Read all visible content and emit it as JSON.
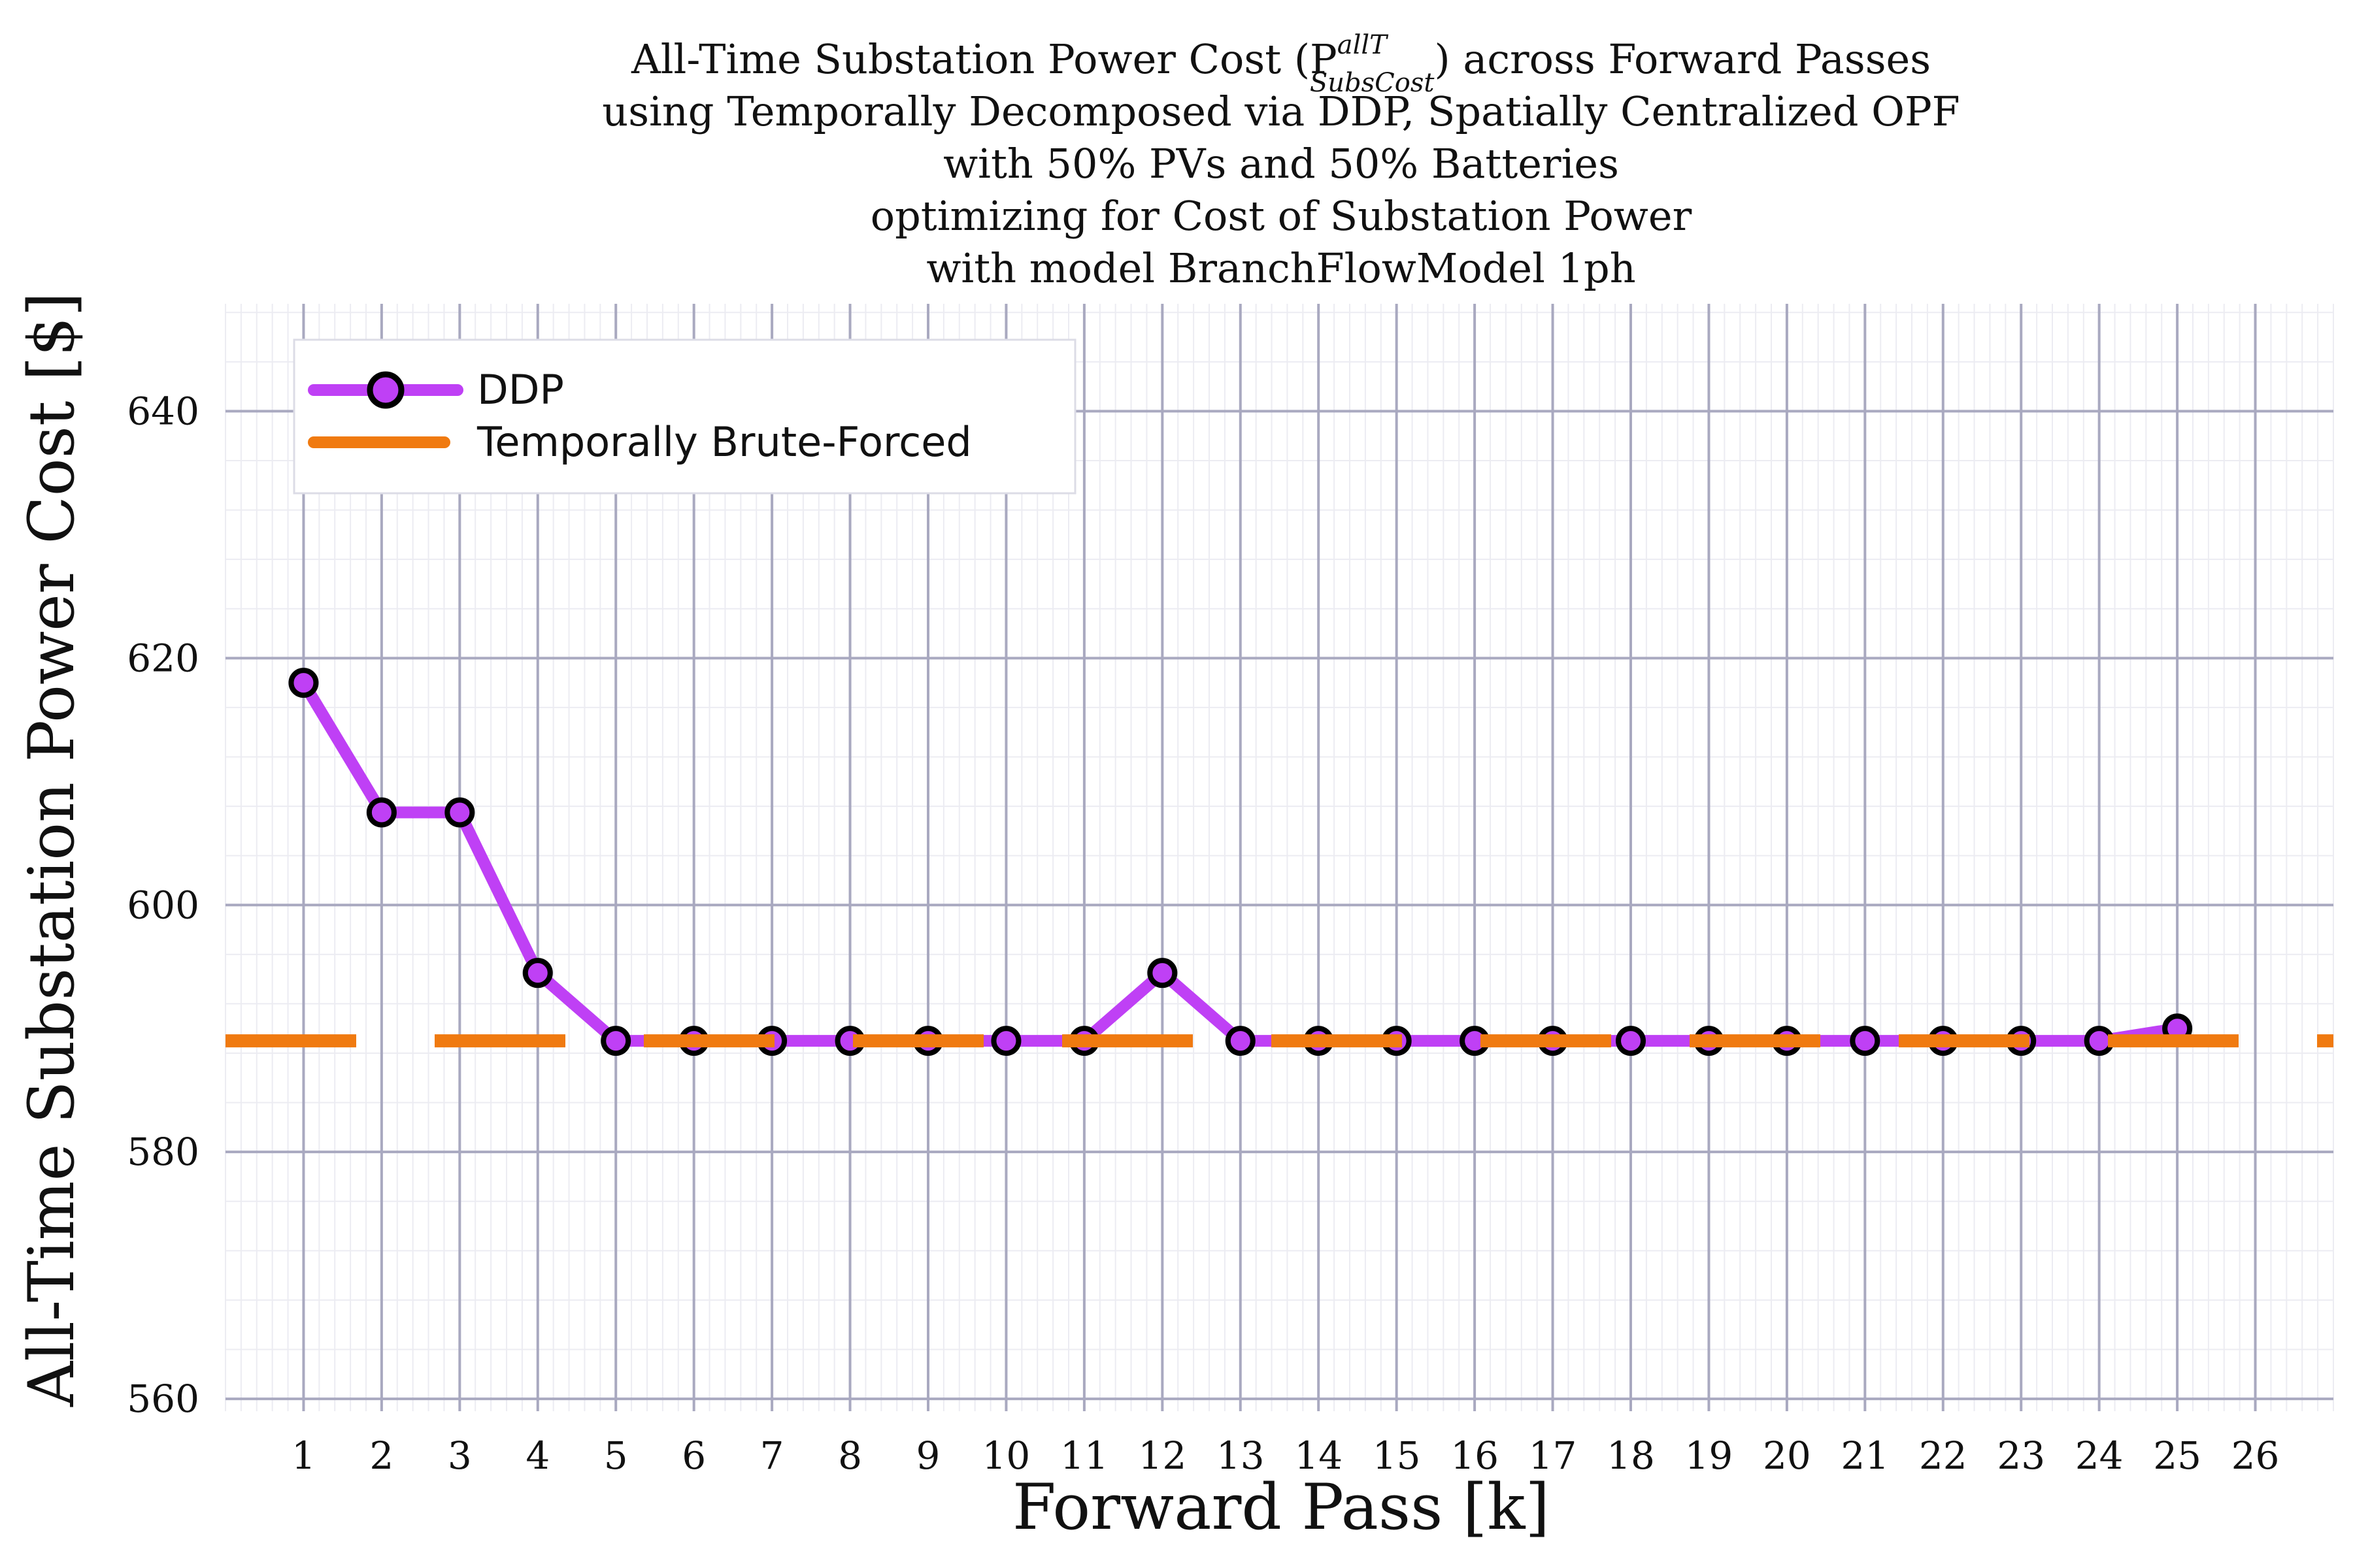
{
  "chart_data": {
    "type": "line",
    "title_lines": [
      "All-Time Substation Power Cost (P",
      "using Temporally Decomposed via DDP, Spatially Centralized OPF",
      "with 50% PVs and 50% Batteries",
      "optimizing for Cost of Substation Power",
      "with model BranchFlowModel 1ph"
    ],
    "title_symbol_sup": "allT",
    "title_symbol_sub": "SubsCost",
    "title_line1_tail": ") across Forward Passes",
    "xlabel": "Forward Pass [k]",
    "ylabel": "All-Time Substation Power Cost [$]",
    "x_ticks": [
      1,
      2,
      3,
      4,
      5,
      6,
      7,
      8,
      9,
      10,
      11,
      12,
      13,
      14,
      15,
      16,
      17,
      18,
      19,
      20,
      21,
      22,
      23,
      24,
      25,
      26
    ],
    "y_ticks": [
      560,
      580,
      600,
      620,
      640
    ],
    "xlim": [
      0.0,
      27.0
    ],
    "ylim": [
      559,
      648.7
    ],
    "grid": true,
    "legend_position": "top-left",
    "series": [
      {
        "name": "DDP",
        "style": "line-with-markers",
        "color": "#bf40f5",
        "x": [
          1,
          2,
          3,
          4,
          5,
          6,
          7,
          8,
          9,
          10,
          11,
          12,
          13,
          14,
          15,
          16,
          17,
          18,
          19,
          20,
          21,
          22,
          23,
          24,
          25
        ],
        "y": [
          618.0,
          607.5,
          607.5,
          594.5,
          589.0,
          589.0,
          589.0,
          589.0,
          589.0,
          589.0,
          589.0,
          594.5,
          589.0,
          589.0,
          589.0,
          589.0,
          589.0,
          589.0,
          589.0,
          589.0,
          589.0,
          589.0,
          589.0,
          589.0,
          590.0
        ]
      },
      {
        "name": "Temporally Brute-Forced",
        "style": "dashed-horizontal",
        "color": "#f07a10",
        "y": 589.0
      }
    ]
  }
}
